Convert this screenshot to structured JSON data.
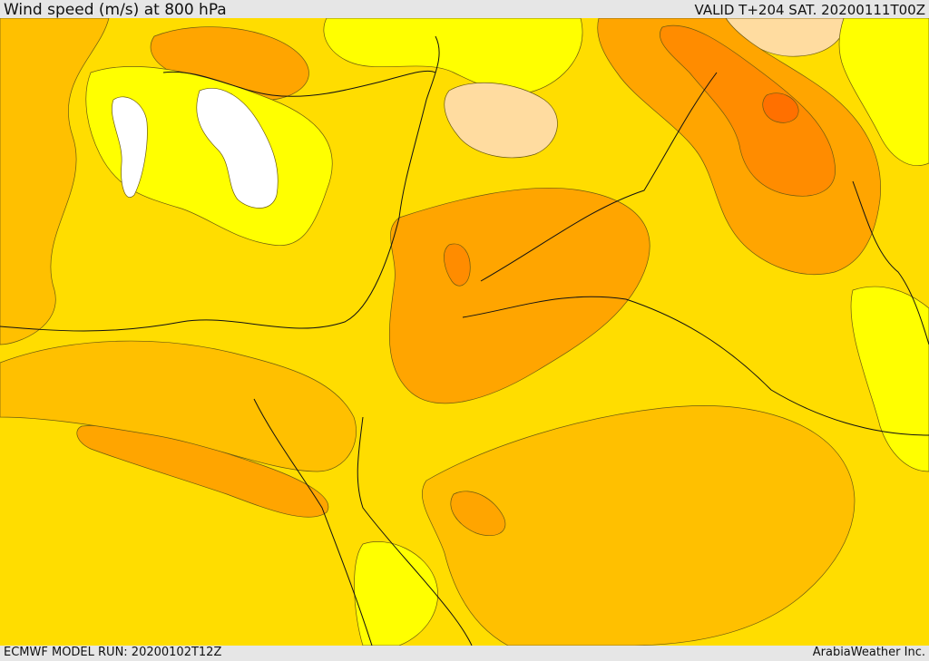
{
  "header": {
    "title": "Wind speed (m/s) at 800 hPa",
    "valid": "VALID T+204 SAT. 20200111T00Z"
  },
  "footer": {
    "model_run": "ECMWF MODEL RUN: 20200102T12Z",
    "credit": "ArabiaWeather Inc."
  },
  "map": {
    "variable": "wind speed at 800 hPa",
    "palette": [
      "#ffffff",
      "#ffff00",
      "#ffdd00",
      "#ffc000",
      "#ffa500",
      "#ff8c00",
      "#ff7000",
      "#ffdca0"
    ]
  }
}
